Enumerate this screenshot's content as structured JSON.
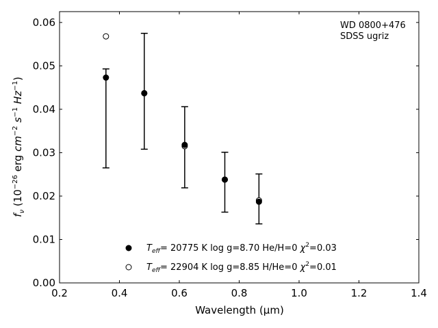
{
  "chart_data": {
    "type": "scatter",
    "xlabel": "Wavelength (μm)",
    "ylabel": "f_ν (10^-26 erg cm^-2 s^-1 Hz^-1)",
    "xlim": [
      0.2,
      1.4
    ],
    "ylim": [
      0.0,
      0.0625
    ],
    "x_ticks": [
      "0.2",
      "0.4",
      "0.6",
      "0.8",
      "1.0",
      "1.2",
      "1.4"
    ],
    "y_ticks": [
      "0.00",
      "0.01",
      "0.02",
      "0.03",
      "0.04",
      "0.05",
      "0.06"
    ],
    "grid": false,
    "legend_position": "lower-center",
    "annotation": [
      "WD 0800+476",
      "SDSS ugriz"
    ],
    "observed": {
      "x": [
        0.355,
        0.483,
        0.618,
        0.752,
        0.866
      ],
      "y_low": [
        0.0265,
        0.0308,
        0.0219,
        0.0163,
        0.0136
      ],
      "y_high": [
        0.0493,
        0.0575,
        0.0406,
        0.0301,
        0.0251
      ]
    },
    "series": [
      {
        "marker": "filled-circle",
        "legend": {
          "teff": "20775 K",
          "logg": "log g=8.70",
          "ratio": "He/H=0",
          "chi2": "0.03"
        },
        "x": [
          0.355,
          0.483,
          0.618,
          0.752,
          0.866
        ],
        "y": [
          0.0473,
          0.0437,
          0.0318,
          0.0238,
          0.0187
        ]
      },
      {
        "marker": "open-circle",
        "legend": {
          "teff": "22904 K",
          "logg": "log g=8.85",
          "ratio": "H/He=0",
          "chi2": "0.01"
        },
        "x": [
          0.355,
          0.483,
          0.618,
          0.752,
          0.866
        ],
        "y": [
          0.0568,
          0.0437,
          0.0315,
          0.0238,
          0.019
        ]
      }
    ]
  }
}
